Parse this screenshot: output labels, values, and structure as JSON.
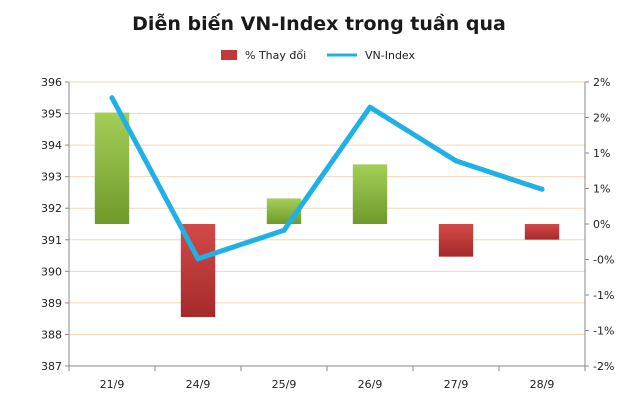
{
  "chart_data": {
    "type": "bar",
    "title": "Diễn biến VN-Index trong tuần qua",
    "categories": [
      "21/9",
      "24/9",
      "25/9",
      "26/9",
      "27/9",
      "28/9"
    ],
    "series": [
      {
        "name": "% Thay đổi",
        "kind": "bar",
        "axis": "right",
        "values": [
          1.57,
          -1.31,
          0.36,
          0.84,
          -0.46,
          -0.22
        ],
        "colors": {
          "positive": "#8cbf3f",
          "negative": "#c0393b"
        }
      },
      {
        "name": "VN-Index",
        "kind": "line",
        "axis": "left",
        "values": [
          395.5,
          390.4,
          391.3,
          395.2,
          393.5,
          392.6
        ],
        "color": "#1fb1e6"
      }
    ],
    "y_left": {
      "ylim": [
        387,
        396
      ],
      "ticks": [
        "387",
        "388",
        "389",
        "390",
        "391",
        "392",
        "393",
        "394",
        "395",
        "396"
      ]
    },
    "y_right": {
      "ylim": [
        -2,
        2
      ],
      "ticks": [
        "-2%",
        "-1%",
        "-1%",
        "-0%",
        "0%",
        "1%",
        "1%",
        "2%",
        "2%"
      ]
    },
    "grid": true,
    "legend_position": "top"
  }
}
